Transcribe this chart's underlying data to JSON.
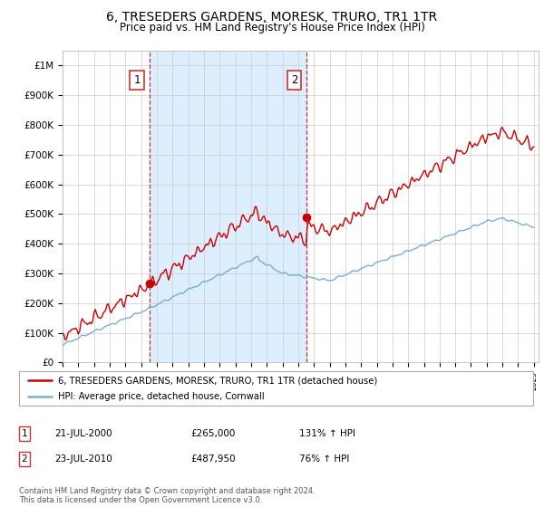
{
  "title": "6, TRESEDERS GARDENS, MORESK, TRURO, TR1 1TR",
  "subtitle": "Price paid vs. HM Land Registry's House Price Index (HPI)",
  "title_fontsize": 10,
  "subtitle_fontsize": 8.5,
  "ylim": [
    0,
    1050000
  ],
  "ytick_values": [
    0,
    100000,
    200000,
    300000,
    400000,
    500000,
    600000,
    700000,
    800000,
    900000,
    1000000
  ],
  "ytick_labels": [
    "£0",
    "£100K",
    "£200K",
    "£300K",
    "£400K",
    "£500K",
    "£600K",
    "£700K",
    "£800K",
    "£900K",
    "£1M"
  ],
  "sale1_year": 2000.55,
  "sale1_price": 265000,
  "sale2_year": 2010.55,
  "sale2_price": 487950,
  "line_color_hpi": "#7aadd4",
  "line_color_price": "#cc0000",
  "shade_color": "#ddeeff",
  "legend_label1": "6, TRESEDERS GARDENS, MORESK, TRURO, TR1 1TR (detached house)",
  "legend_label2": "HPI: Average price, detached house, Cornwall",
  "table_row1": [
    "1",
    "21-JUL-2000",
    "£265,000",
    "131% ↑ HPI"
  ],
  "table_row2": [
    "2",
    "23-JUL-2010",
    "£487,950",
    "76% ↑ HPI"
  ],
  "footnote": "Contains HM Land Registry data © Crown copyright and database right 2024.\nThis data is licensed under the Open Government Licence v3.0.",
  "background_color": "#ffffff",
  "grid_color": "#cccccc"
}
